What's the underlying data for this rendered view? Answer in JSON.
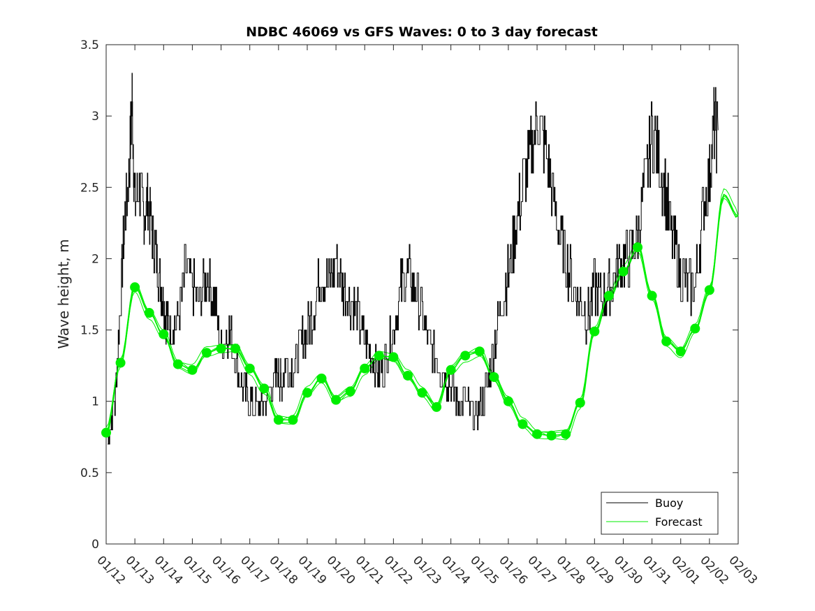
{
  "chart_data": {
    "type": "line",
    "title": "NDBC 46069 vs GFS Waves: 0 to 3 day forecast",
    "xlabel": "",
    "ylabel": "Wave height, m",
    "xlim": [
      0,
      22
    ],
    "ylim": [
      0,
      3.5
    ],
    "grid": false,
    "legend_position": "bottom-right",
    "x_tick_labels": [
      "01/12",
      "01/13",
      "01/14",
      "01/15",
      "01/16",
      "01/17",
      "01/18",
      "01/19",
      "01/20",
      "01/21",
      "01/22",
      "01/23",
      "01/24",
      "01/25",
      "01/26",
      "01/27",
      "01/28",
      "01/29",
      "01/30",
      "01/31",
      "02/01",
      "02/02",
      "02/03"
    ],
    "y_ticks": [
      0,
      0.5,
      1,
      1.5,
      2,
      2.5,
      3,
      3.5
    ],
    "y_tick_labels": [
      "0",
      "0.5",
      "1",
      "1.5",
      "2",
      "2.5",
      "3",
      "3.5"
    ],
    "colors": {
      "buoy": "#000000",
      "forecast": "#00ee00",
      "marker": "#00ee00"
    },
    "series": [
      {
        "name": "Buoy",
        "x": [
          0.05,
          0.3,
          0.5,
          0.65,
          0.8,
          0.9,
          1.0,
          1.15,
          1.3,
          1.45,
          1.6,
          1.75,
          1.9,
          2.0,
          2.1,
          2.25,
          2.5,
          2.75,
          3.0,
          3.25,
          3.5,
          3.75,
          4.0,
          4.25,
          4.5,
          4.75,
          5.0,
          5.25,
          5.5,
          5.75,
          6.0,
          6.1,
          6.25,
          6.5,
          6.75,
          7.0,
          7.25,
          7.5,
          7.75,
          8.0,
          8.25,
          8.5,
          8.75,
          9.0,
          9.25,
          9.5,
          9.75,
          10.0,
          10.25,
          10.5,
          10.75,
          11.0,
          11.25,
          11.5,
          11.75,
          12.0,
          12.25,
          12.5,
          12.75,
          13.0,
          13.25,
          13.5,
          13.75,
          14.0,
          14.25,
          14.5,
          14.75,
          15.0,
          15.25,
          15.5,
          15.75,
          16.0,
          16.25,
          16.5,
          16.75,
          17.0,
          17.25,
          17.5,
          17.75,
          18.0,
          18.25,
          18.5,
          18.75,
          19.0,
          19.25,
          19.5,
          19.75,
          20.0,
          20.25,
          20.5,
          20.75,
          21.0,
          21.15,
          21.3
        ],
        "y": [
          0.75,
          1.0,
          1.7,
          2.3,
          2.6,
          3.1,
          2.4,
          2.5,
          2.3,
          2.4,
          2.2,
          2.0,
          1.8,
          1.7,
          1.6,
          1.5,
          1.6,
          1.9,
          1.8,
          1.7,
          1.9,
          1.7,
          1.4,
          1.5,
          1.3,
          1.1,
          1.0,
          0.95,
          1.0,
          1.1,
          1.2,
          1.1,
          1.3,
          1.2,
          1.4,
          1.5,
          1.7,
          1.9,
          1.8,
          2.0,
          1.8,
          1.7,
          1.6,
          1.4,
          1.3,
          1.2,
          1.3,
          1.5,
          1.8,
          1.9,
          1.8,
          1.6,
          1.4,
          1.3,
          1.2,
          1.1,
          1.0,
          1.0,
          0.9,
          0.95,
          1.1,
          1.4,
          1.7,
          1.9,
          2.2,
          2.5,
          2.7,
          3.0,
          2.8,
          2.5,
          2.2,
          2.0,
          1.8,
          1.7,
          1.6,
          1.8,
          1.7,
          1.8,
          1.9,
          2.0,
          2.0,
          2.2,
          2.5,
          2.9,
          2.7,
          2.4,
          2.1,
          1.9,
          1.8,
          1.8,
          2.3,
          2.6,
          2.9,
          2.9
        ]
      },
      {
        "name": "Forecast",
        "x": [
          0.0,
          0.5,
          1.0,
          1.5,
          2.0,
          2.5,
          3.0,
          3.5,
          4.0,
          4.5,
          5.0,
          5.5,
          6.0,
          6.5,
          7.0,
          7.5,
          8.0,
          8.5,
          9.0,
          9.5,
          10.0,
          10.5,
          11.0,
          11.5,
          12.0,
          12.5,
          13.0,
          13.5,
          14.0,
          14.5,
          15.0,
          15.5,
          16.0,
          16.5,
          17.0,
          17.5,
          18.0,
          18.5,
          19.0,
          19.5,
          20.0,
          20.5,
          21.0,
          21.5,
          22.0
        ],
        "y": [
          0.78,
          1.27,
          1.8,
          1.62,
          1.47,
          1.26,
          1.22,
          1.34,
          1.37,
          1.37,
          1.23,
          1.09,
          0.87,
          0.87,
          1.06,
          1.16,
          1.01,
          1.07,
          1.23,
          1.32,
          1.31,
          1.18,
          1.06,
          0.96,
          1.22,
          1.32,
          1.35,
          1.17,
          1.0,
          0.84,
          0.77,
          0.76,
          0.77,
          0.99,
          1.49,
          1.74,
          1.91,
          2.08,
          1.74,
          1.42,
          1.35,
          1.51,
          1.78,
          2.45,
          2.3
        ]
      }
    ],
    "markers": {
      "x": [
        0.0,
        0.5,
        1.0,
        1.5,
        2.0,
        2.5,
        3.0,
        3.5,
        4.0,
        4.5,
        5.0,
        5.5,
        6.0,
        6.5,
        7.0,
        7.5,
        8.0,
        8.5,
        9.0,
        9.5,
        10.0,
        10.5,
        11.0,
        11.5,
        12.0,
        12.5,
        13.0,
        13.5,
        14.0,
        14.5,
        15.0,
        15.5,
        16.0,
        16.5,
        17.0,
        17.5,
        18.0,
        18.5,
        19.0,
        19.5,
        20.0,
        20.5,
        21.0
      ],
      "y": [
        0.78,
        1.27,
        1.8,
        1.62,
        1.47,
        1.26,
        1.22,
        1.34,
        1.37,
        1.37,
        1.23,
        1.09,
        0.87,
        0.87,
        1.06,
        1.16,
        1.01,
        1.07,
        1.23,
        1.32,
        1.31,
        1.18,
        1.06,
        0.96,
        1.22,
        1.32,
        1.35,
        1.17,
        1.0,
        0.84,
        0.77,
        0.76,
        0.77,
        0.99,
        1.49,
        1.74,
        1.91,
        2.08,
        1.74,
        1.42,
        1.35,
        1.51,
        1.78
      ]
    }
  }
}
